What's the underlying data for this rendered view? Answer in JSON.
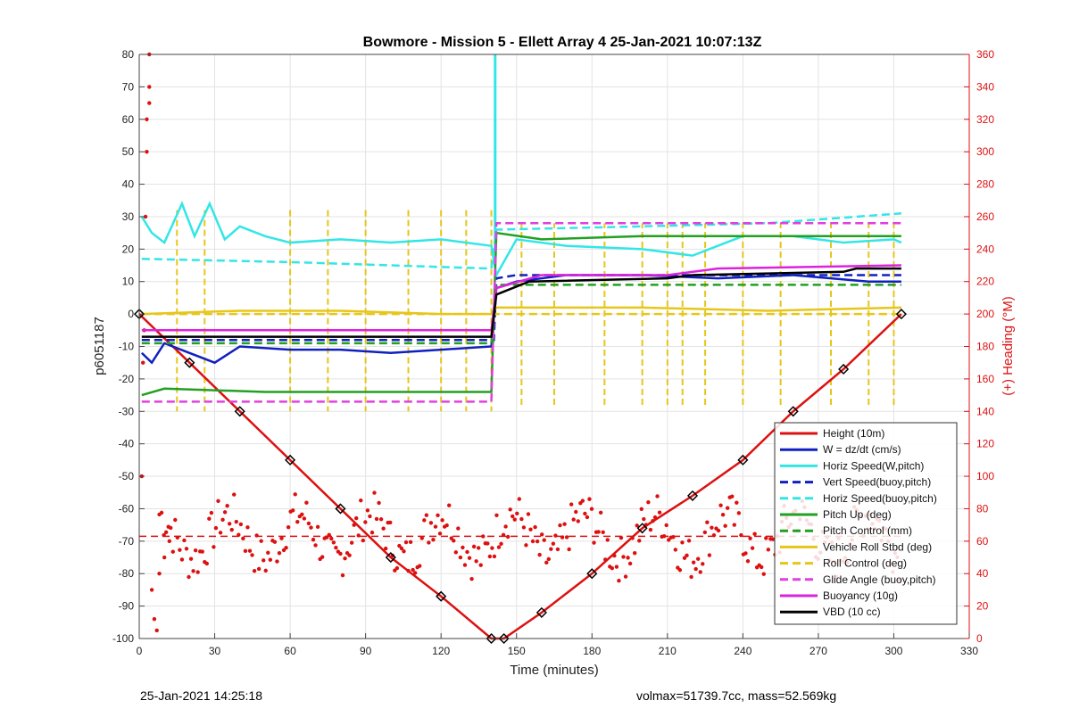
{
  "footer": {
    "date": "25-Jan-2021 14:25:18",
    "info": "volmax=51739.7cc, mass=52.569kg"
  },
  "chart_data": {
    "type": "line",
    "title": "Bowmore - Mission 5 - Ellett Array 4 25-Jan-2021 10:07:13Z",
    "xlabel": "Time (minutes)",
    "ylabel": "p6051187",
    "y2label": "(+) Heading (°M)",
    "xlim": [
      0,
      330
    ],
    "ylim": [
      -100,
      80
    ],
    "y2lim": [
      0,
      360
    ],
    "x_ticks": [
      0,
      30,
      60,
      90,
      120,
      150,
      180,
      210,
      240,
      270,
      300,
      330
    ],
    "y_ticks": [
      -100,
      -90,
      -80,
      -70,
      -60,
      -50,
      -40,
      -30,
      -20,
      -10,
      0,
      10,
      20,
      30,
      40,
      50,
      60,
      70,
      80
    ],
    "y2_ticks": [
      0,
      20,
      40,
      60,
      80,
      100,
      120,
      140,
      160,
      180,
      200,
      220,
      240,
      260,
      280,
      300,
      320,
      340,
      360
    ],
    "grid": true,
    "legend_position": "bottom-right",
    "colors": {
      "height": "#dd1010",
      "w": "#1020c0",
      "horiz": "#33e6e6",
      "pitch": "#22a022",
      "roll": "#e6c61a",
      "glide": "#e040e0",
      "buoy": "#dd22dd",
      "vbd": "#000000",
      "heading": "#dd1010",
      "axis_right": "#dd1010"
    },
    "series": [
      {
        "name": "Height (10m)",
        "style": "solid",
        "color": "#dd1010",
        "x": [
          0,
          20,
          40,
          60,
          80,
          100,
          120,
          140,
          145,
          160,
          180,
          200,
          220,
          240,
          260,
          280,
          303
        ],
        "values": [
          0,
          -15,
          -30,
          -45,
          -60,
          -75,
          -87,
          -100,
          -100,
          -92,
          -80,
          -66,
          -56,
          -45,
          -30,
          -17,
          0
        ]
      },
      {
        "name": "W = dz/dt (cm/s)",
        "style": "solid",
        "color": "#1020c0",
        "x": [
          1,
          5,
          10,
          20,
          30,
          40,
          60,
          80,
          100,
          120,
          140,
          142,
          150,
          170,
          200,
          230,
          260,
          290,
          303
        ],
        "values": [
          -12,
          -15,
          -9,
          -12,
          -15,
          -10,
          -11,
          -11,
          -12,
          -11,
          -10,
          8,
          10,
          12,
          12,
          11,
          12,
          10,
          10
        ]
      },
      {
        "name": "Horiz Speed(W,pitch)",
        "style": "solid",
        "color": "#33e6e6",
        "x": [
          1,
          5,
          10,
          17,
          22,
          28,
          34,
          40,
          50,
          60,
          80,
          100,
          120,
          140,
          142,
          150,
          170,
          200,
          220,
          240,
          260,
          280,
          300,
          303
        ],
        "values": [
          30,
          25,
          22,
          34,
          24,
          34,
          23,
          27,
          24,
          22,
          23,
          22,
          23,
          21,
          12,
          23,
          21,
          20,
          18,
          24,
          24,
          22,
          23,
          22
        ]
      },
      {
        "name": "Vert Speed(buoy,pitch)",
        "style": "dashed",
        "color": "#1020c0",
        "x": [
          1,
          140,
          141,
          142,
          150,
          200,
          250,
          303
        ],
        "values": [
          -8,
          -8,
          -8,
          11,
          12,
          12,
          12,
          12
        ]
      },
      {
        "name": "Horiz Speed(buoy,pitch)",
        "style": "dashed",
        "color": "#33e6e6",
        "x": [
          1,
          60,
          100,
          140,
          142,
          200,
          250,
          303
        ],
        "values": [
          17,
          16,
          15,
          14,
          26,
          27,
          28,
          31
        ]
      },
      {
        "name": "Pitch Up (deg)",
        "style": "solid",
        "color": "#22a022",
        "x": [
          1,
          10,
          50,
          90,
          120,
          140,
          142,
          160,
          200,
          250,
          303
        ],
        "values": [
          -25,
          -23,
          -24,
          -24,
          -24,
          -24,
          25,
          23,
          24,
          24,
          24
        ]
      },
      {
        "name": "Pitch Control (mm)",
        "style": "dashed",
        "color": "#22a022",
        "x": [
          1,
          140,
          142,
          303
        ],
        "values": [
          -9,
          -9,
          9,
          9
        ]
      },
      {
        "name": "Vehicle Roll Stbd (deg)",
        "style": "solid",
        "color": "#e6c61a",
        "x": [
          1,
          40,
          80,
          120,
          140,
          142,
          200,
          250,
          303
        ],
        "values": [
          0,
          1,
          1,
          0,
          0,
          2,
          2,
          1,
          2
        ]
      },
      {
        "name": "Roll Control (deg)",
        "style": "dashed",
        "color": "#e6c61a",
        "x": [
          1,
          140,
          142,
          303
        ],
        "values": [
          0,
          0,
          0,
          0
        ]
      },
      {
        "name": "Glide Angle (buoy,pitch)",
        "style": "dashed",
        "color": "#e040e0",
        "x": [
          1,
          140,
          142,
          303
        ],
        "values": [
          -27,
          -27,
          28,
          28
        ]
      },
      {
        "name": "Buoyancy (10g)",
        "style": "solid",
        "color": "#dd22dd",
        "x": [
          1,
          60,
          140,
          142,
          160,
          210,
          230,
          303
        ],
        "values": [
          -5,
          -5,
          -5,
          8,
          12,
          12,
          14,
          15
        ]
      },
      {
        "name": "VBD (10 cc)",
        "style": "solid",
        "color": "#000000",
        "x": [
          1,
          140,
          142,
          155,
          210,
          220,
          280,
          285,
          303
        ],
        "values": [
          -7,
          -7,
          6,
          10,
          11,
          12,
          13,
          14,
          14
        ]
      }
    ],
    "heading_mean": 63,
    "heading_points_desc": "scattered heading fixes on right axis",
    "heading_points": [
      [
        1,
        100
      ],
      [
        1.5,
        170
      ],
      [
        2,
        190
      ],
      [
        2.5,
        260
      ],
      [
        3,
        300
      ],
      [
        3,
        320
      ],
      [
        4,
        330
      ],
      [
        4,
        340
      ],
      [
        4,
        360
      ],
      [
        5,
        30
      ],
      [
        6,
        12
      ],
      [
        7,
        5
      ],
      [
        8,
        40
      ],
      [
        10,
        50
      ],
      [
        12,
        60
      ]
    ]
  }
}
